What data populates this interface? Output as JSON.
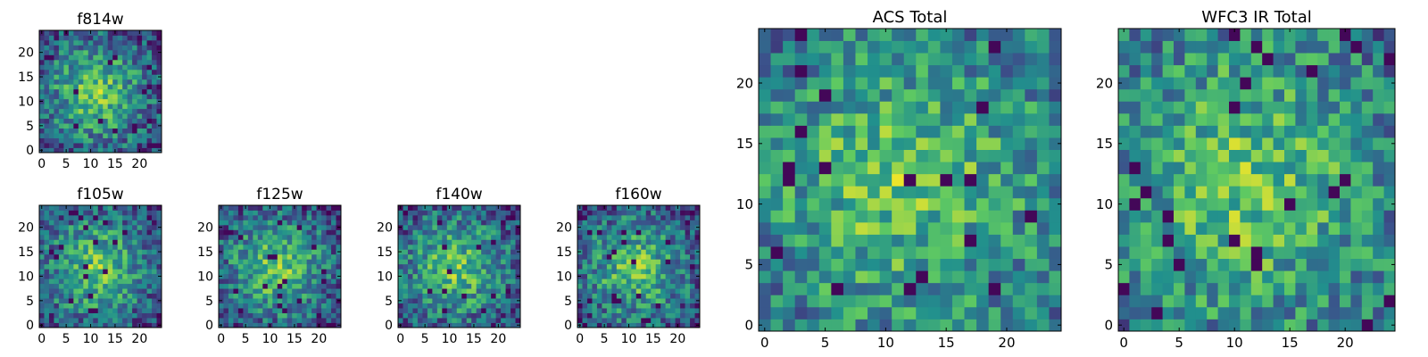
{
  "chart_data": {
    "type": "heatmap",
    "colormap": "viridis",
    "panels": [
      {
        "title": "f814w",
        "grid_size": 25,
        "xticks": [
          0,
          5,
          10,
          15,
          20
        ],
        "yticks": [
          0,
          5,
          10,
          15,
          20
        ],
        "xlim": [
          0,
          25
        ],
        "ylim": [
          0,
          25
        ]
      },
      {
        "title": "f105w",
        "grid_size": 25,
        "xticks": [
          0,
          5,
          10,
          15,
          20
        ],
        "yticks": [
          0,
          5,
          10,
          15,
          20
        ],
        "xlim": [
          0,
          25
        ],
        "ylim": [
          0,
          25
        ]
      },
      {
        "title": "f125w",
        "grid_size": 25,
        "xticks": [
          0,
          5,
          10,
          15,
          20
        ],
        "yticks": [
          0,
          5,
          10,
          15,
          20
        ],
        "xlim": [
          0,
          25
        ],
        "ylim": [
          0,
          25
        ]
      },
      {
        "title": "f140w",
        "grid_size": 25,
        "xticks": [
          0,
          5,
          10,
          15,
          20
        ],
        "yticks": [
          0,
          5,
          10,
          15,
          20
        ],
        "xlim": [
          0,
          25
        ],
        "ylim": [
          0,
          25
        ]
      },
      {
        "title": "f160w",
        "grid_size": 25,
        "xticks": [
          0,
          5,
          10,
          15,
          20
        ],
        "yticks": [
          0,
          5,
          10,
          15,
          20
        ],
        "xlim": [
          0,
          25
        ],
        "ylim": [
          0,
          25
        ]
      },
      {
        "title": "ACS Total",
        "grid_size": 25,
        "xticks": [
          0,
          5,
          10,
          15,
          20
        ],
        "yticks": [
          0,
          5,
          10,
          15,
          20
        ],
        "xlim": [
          0,
          25
        ],
        "ylim": [
          0,
          25
        ]
      },
      {
        "title": "WFC3 IR Total",
        "grid_size": 25,
        "xticks": [
          0,
          5,
          10,
          15,
          20
        ],
        "yticks": [
          0,
          5,
          10,
          15,
          20
        ],
        "xlim": [
          0,
          25
        ],
        "ylim": [
          0,
          25
        ]
      }
    ],
    "grid": false,
    "colors": {
      "axis": "#000000",
      "background": "#ffffff"
    }
  }
}
